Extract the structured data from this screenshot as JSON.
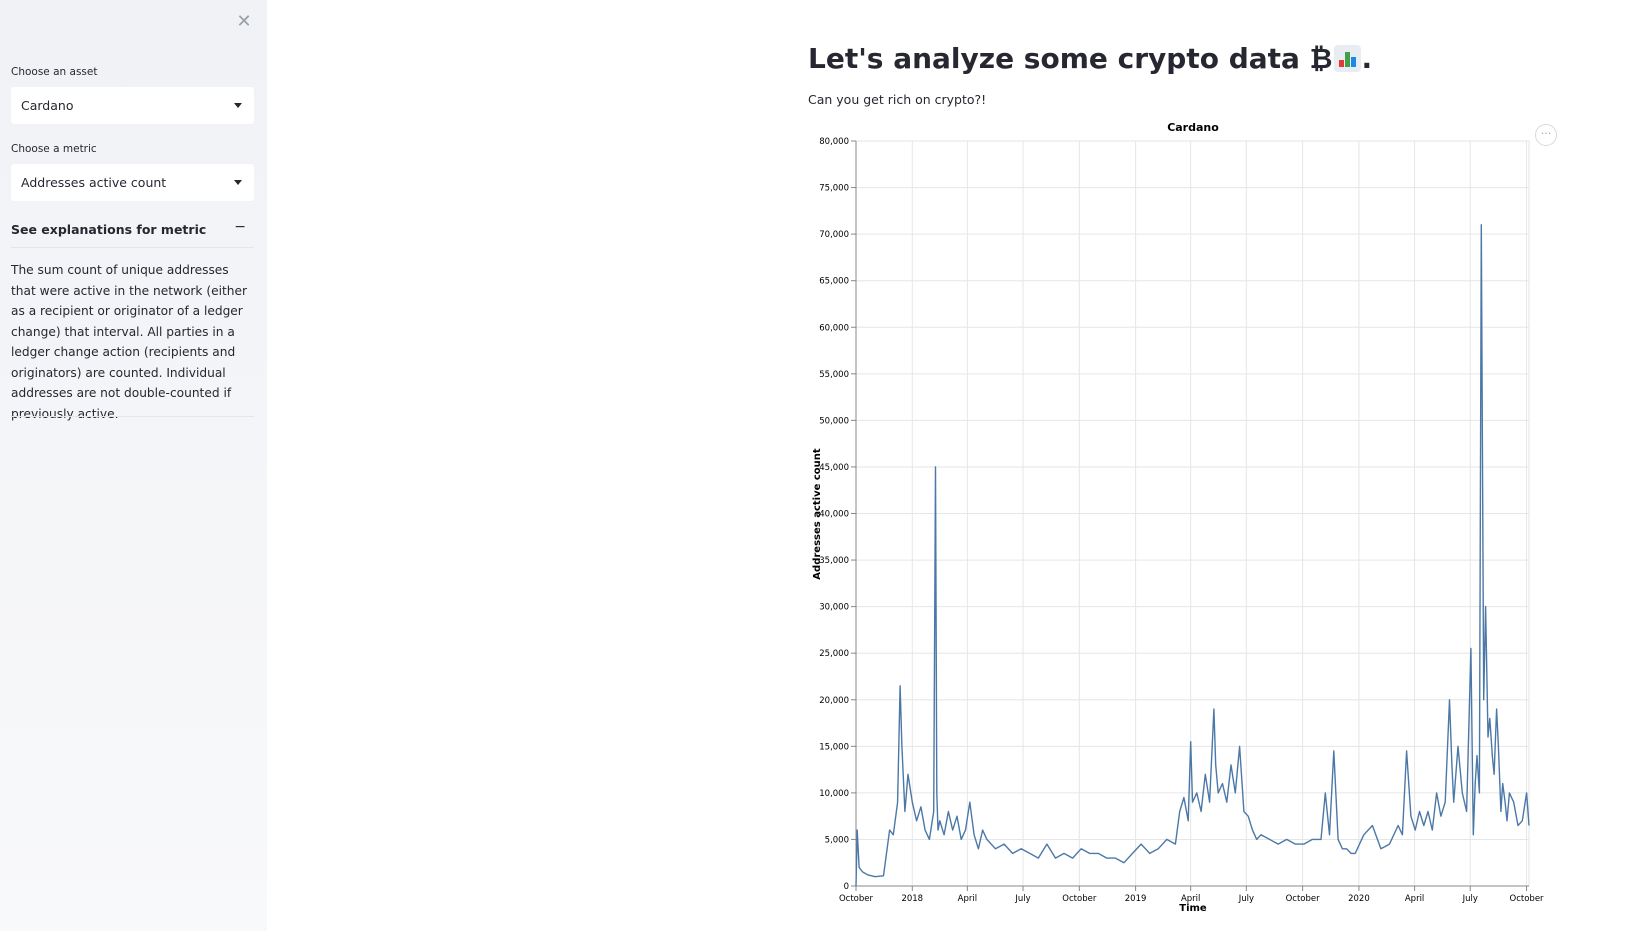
{
  "sidebar": {
    "close_icon": "close-icon",
    "asset_label": "Choose an asset",
    "asset_value": "Cardano",
    "metric_label": "Choose a metric",
    "metric_value": "Addresses active count",
    "expander_title": "See explanations for metric",
    "expander_toggle": "−",
    "expander_text": "The sum count of unique addresses that were active in the network (either as a recipient or originator of a ledger change) that interval. All parties in a ledger change action (recipients and originators) are counted. Individual addresses are not double-counted if previously active."
  },
  "main": {
    "title_text": "Let's analyze some crypto data ₿",
    "title_period": ".",
    "title_emoji": "bar-chart-emoji",
    "subtitle": "Can you get rich on crypto?!",
    "chart_menu_icon": "more-horizontal-icon"
  },
  "colors": {
    "line": "#4c78a8",
    "grid": "#e6e6e6",
    "sidebar_bg": "#f0f2f6"
  },
  "chart_data": {
    "type": "line",
    "title": "Cardano",
    "xlabel": "Time",
    "ylabel": "Addresses active count",
    "ylim": [
      0,
      80000
    ],
    "y_ticks": [
      0,
      5000,
      10000,
      15000,
      20000,
      25000,
      30000,
      35000,
      40000,
      45000,
      50000,
      55000,
      60000,
      65000,
      70000,
      75000,
      80000
    ],
    "y_tick_labels": [
      "0",
      "5,000",
      "10,000",
      "15,000",
      "20,000",
      "25,000",
      "30,000",
      "35,000",
      "40,000",
      "45,000",
      "50,000",
      "55,000",
      "60,000",
      "65,000",
      "70,000",
      "75,000",
      "80,000"
    ],
    "x_ticks": [
      "2017-10-01",
      "2018-01-01",
      "2018-04-01",
      "2018-07-01",
      "2018-10-01",
      "2019-01-01",
      "2019-04-01",
      "2019-07-01",
      "2019-10-01",
      "2020-01-01",
      "2020-04-01",
      "2020-07-01",
      "2020-10-01"
    ],
    "x_tick_labels": [
      "October",
      "2018",
      "April",
      "July",
      "October",
      "2019",
      "April",
      "July",
      "October",
      "2020",
      "April",
      "July",
      "October"
    ],
    "xlim": [
      "2017-10-01",
      "2020-10-05"
    ],
    "grid": true,
    "series": [
      {
        "x": [
          "2017-10-01",
          "2017-10-03",
          "2017-10-06",
          "2017-10-12",
          "2017-10-20",
          "2017-11-01",
          "2017-11-15",
          "2017-11-25",
          "2017-12-01",
          "2017-12-08",
          "2017-12-12",
          "2017-12-15",
          "2017-12-20",
          "2017-12-25",
          "2018-01-01",
          "2018-01-08",
          "2018-01-15",
          "2018-01-22",
          "2018-01-29",
          "2018-02-05",
          "2018-02-08",
          "2018-02-10",
          "2018-02-12",
          "2018-02-15",
          "2018-02-22",
          "2018-03-01",
          "2018-03-08",
          "2018-03-15",
          "2018-03-22",
          "2018-03-29",
          "2018-04-05",
          "2018-04-12",
          "2018-04-19",
          "2018-04-26",
          "2018-05-03",
          "2018-05-17",
          "2018-05-31",
          "2018-06-14",
          "2018-06-28",
          "2018-07-12",
          "2018-07-26",
          "2018-08-09",
          "2018-08-23",
          "2018-09-06",
          "2018-09-20",
          "2018-10-04",
          "2018-10-18",
          "2018-11-01",
          "2018-11-15",
          "2018-11-29",
          "2018-12-13",
          "2018-12-27",
          "2019-01-10",
          "2019-01-24",
          "2019-02-07",
          "2019-02-21",
          "2019-03-07",
          "2019-03-14",
          "2019-03-21",
          "2019-03-28",
          "2019-04-01",
          "2019-04-04",
          "2019-04-11",
          "2019-04-18",
          "2019-04-25",
          "2019-05-02",
          "2019-05-09",
          "2019-05-12",
          "2019-05-16",
          "2019-05-23",
          "2019-05-30",
          "2019-06-06",
          "2019-06-13",
          "2019-06-20",
          "2019-06-27",
          "2019-07-04",
          "2019-07-11",
          "2019-07-18",
          "2019-07-25",
          "2019-08-08",
          "2019-08-22",
          "2019-09-05",
          "2019-09-19",
          "2019-10-03",
          "2019-10-17",
          "2019-10-31",
          "2019-11-07",
          "2019-11-14",
          "2019-11-21",
          "2019-11-28",
          "2019-12-05",
          "2019-12-12",
          "2019-12-19",
          "2019-12-26",
          "2020-01-09",
          "2020-01-23",
          "2020-02-06",
          "2020-02-20",
          "2020-03-05",
          "2020-03-12",
          "2020-03-19",
          "2020-03-26",
          "2020-04-02",
          "2020-04-09",
          "2020-04-16",
          "2020-04-23",
          "2020-04-30",
          "2020-05-07",
          "2020-05-14",
          "2020-05-21",
          "2020-05-28",
          "2020-06-01",
          "2020-06-04",
          "2020-06-11",
          "2020-06-18",
          "2020-06-25",
          "2020-07-02",
          "2020-07-06",
          "2020-07-09",
          "2020-07-12",
          "2020-07-16",
          "2020-07-19",
          "2020-07-23",
          "2020-07-26",
          "2020-07-30",
          "2020-08-02",
          "2020-08-06",
          "2020-08-09",
          "2020-08-13",
          "2020-08-16",
          "2020-08-20",
          "2020-08-23",
          "2020-08-27",
          "2020-08-30",
          "2020-09-03",
          "2020-09-10",
          "2020-09-17",
          "2020-09-24",
          "2020-10-01",
          "2020-10-05"
        ],
        "y": [
          0,
          6000,
          2000,
          1500,
          1200,
          1000,
          1100,
          6000,
          5500,
          9000,
          21500,
          15000,
          8000,
          12000,
          9000,
          7000,
          8500,
          6000,
          5000,
          8000,
          45000,
          10000,
          6000,
          7000,
          5500,
          8000,
          6000,
          7500,
          5000,
          6000,
          9000,
          5500,
          4000,
          6000,
          5000,
          4000,
          4500,
          3500,
          4000,
          3500,
          3000,
          4500,
          3000,
          3500,
          3000,
          4000,
          3500,
          3500,
          3000,
          3000,
          2500,
          3500,
          4500,
          3500,
          4000,
          5000,
          4500,
          8000,
          9500,
          7000,
          15500,
          9000,
          10000,
          8000,
          12000,
          9000,
          19000,
          13000,
          10000,
          11000,
          9000,
          13000,
          10000,
          15000,
          8000,
          7500,
          6000,
          5000,
          5500,
          5000,
          4500,
          5000,
          4500,
          4500,
          5000,
          5000,
          10000,
          5500,
          14500,
          5000,
          4000,
          4000,
          3500,
          3500,
          5500,
          6500,
          4000,
          4500,
          6500,
          5500,
          14500,
          7500,
          6000,
          8000,
          6500,
          8000,
          6000,
          10000,
          7500,
          9000,
          20000,
          13000,
          9000,
          15000,
          10000,
          8000,
          25500,
          5500,
          11000,
          14000,
          10000,
          71000,
          20000,
          30000,
          16000,
          18000,
          14000,
          12000,
          19000,
          15000,
          8000,
          11000,
          9000,
          7000,
          10000,
          9000,
          6500,
          7000,
          10000,
          6500
        ]
      }
    ]
  }
}
